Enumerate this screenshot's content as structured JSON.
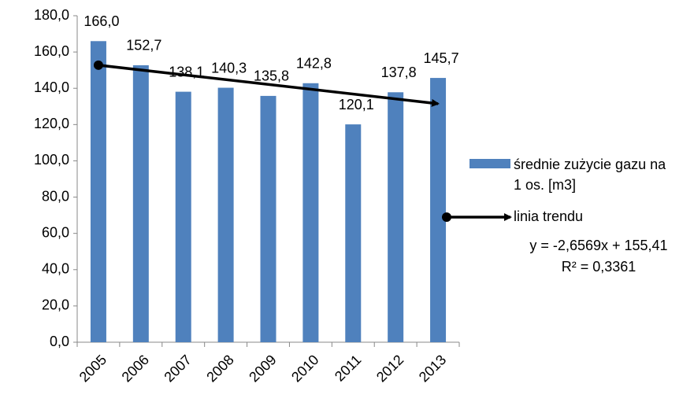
{
  "chart_data": {
    "type": "bar",
    "categories": [
      "2005",
      "2006",
      "2007",
      "2008",
      "2009",
      "2010",
      "2011",
      "2012",
      "2013"
    ],
    "series": [
      {
        "name": "średnie zużycie gazu na 1 os. [m3]",
        "color": "#4f81bd",
        "values": [
          166.0,
          152.7,
          138.1,
          140.3,
          135.8,
          142.8,
          120.1,
          137.8,
          145.7
        ],
        "value_labels": [
          "166,0",
          "152,7",
          "138,1",
          "140,3",
          "135,8",
          "142,8",
          "120,1",
          "137,8",
          "145,7"
        ]
      }
    ],
    "trend": {
      "name": "linia trendu",
      "slope": -2.6569,
      "intercept": 155.41,
      "equation": "y = -2,6569x + 155,41",
      "r2": "R² = 0,3361",
      "color": "#000000"
    },
    "ylim": [
      0,
      180
    ],
    "yticks": [
      {
        "value": 0,
        "label": "0,0"
      },
      {
        "value": 20,
        "label": "20,0"
      },
      {
        "value": 40,
        "label": "40,0"
      },
      {
        "value": 60,
        "label": "60,0"
      },
      {
        "value": 80,
        "label": "80,0"
      },
      {
        "value": 100,
        "label": "100,0"
      },
      {
        "value": 120,
        "label": "120,0"
      },
      {
        "value": 140,
        "label": "140,0"
      },
      {
        "value": 160,
        "label": "160,0"
      },
      {
        "value": 180,
        "label": "180,0"
      }
    ],
    "grid": false,
    "legend": "right"
  }
}
